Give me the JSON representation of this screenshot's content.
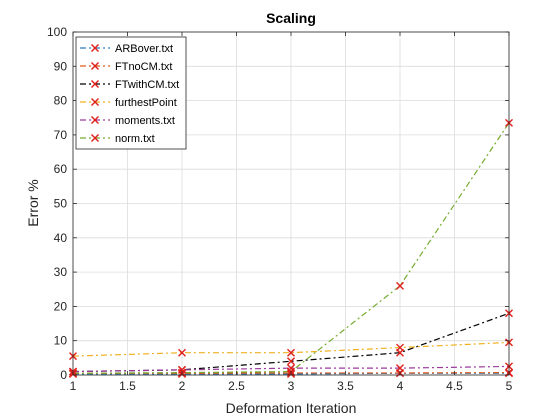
{
  "chart_data": {
    "type": "line",
    "title": "Scaling",
    "xlabel": "Deformation Iteration",
    "ylabel": "Error %",
    "xlim": [
      1,
      5
    ],
    "ylim": [
      0,
      100
    ],
    "xticks": [
      1,
      1.5,
      2,
      2.5,
      3,
      3.5,
      4,
      4.5,
      5
    ],
    "xtick_labels": [
      "1",
      "1.5",
      "2",
      "2.5",
      "3",
      "3.5",
      "4",
      "4.5",
      "5"
    ],
    "yticks": [
      0,
      10,
      20,
      30,
      40,
      50,
      60,
      70,
      80,
      90,
      100
    ],
    "ytick_labels": [
      "0",
      "10",
      "20",
      "30",
      "40",
      "50",
      "60",
      "70",
      "80",
      "90",
      "100"
    ],
    "grid": true,
    "legend_position": "top-left",
    "marker": "x",
    "marker_color": "#e0201c",
    "x": [
      1,
      2,
      3,
      4,
      5
    ],
    "series": [
      {
        "name": "ARBover.txt",
        "values": [
          0.3,
          0.3,
          0.3,
          0.5,
          0.5
        ],
        "color": "#2f7fc1",
        "dash": "6,3,2,3"
      },
      {
        "name": "FTnoCM.txt",
        "values": [
          0.5,
          0.5,
          0.6,
          0.6,
          0.7
        ],
        "color": "#e05a1c",
        "dash": "6,3,2,3"
      },
      {
        "name": "FTwithCM.txt",
        "values": [
          1.0,
          1.5,
          4.0,
          6.5,
          18.0
        ],
        "color": "#000000",
        "dash": "6,3,2,3"
      },
      {
        "name": "furthestPoint",
        "values": [
          5.5,
          6.5,
          6.5,
          8.0,
          9.5
        ],
        "color": "#f0b020",
        "dash": "6,3,2,3"
      },
      {
        "name": "moments.txt",
        "values": [
          1.0,
          1.5,
          2.0,
          2.0,
          2.5
        ],
        "color": "#9b3a9b",
        "dash": "6,3,2,3"
      },
      {
        "name": "norm.txt",
        "values": [
          0.5,
          0.7,
          1.0,
          26.0,
          73.5
        ],
        "color": "#77ac30",
        "dash": "6,3,2,3"
      }
    ]
  }
}
